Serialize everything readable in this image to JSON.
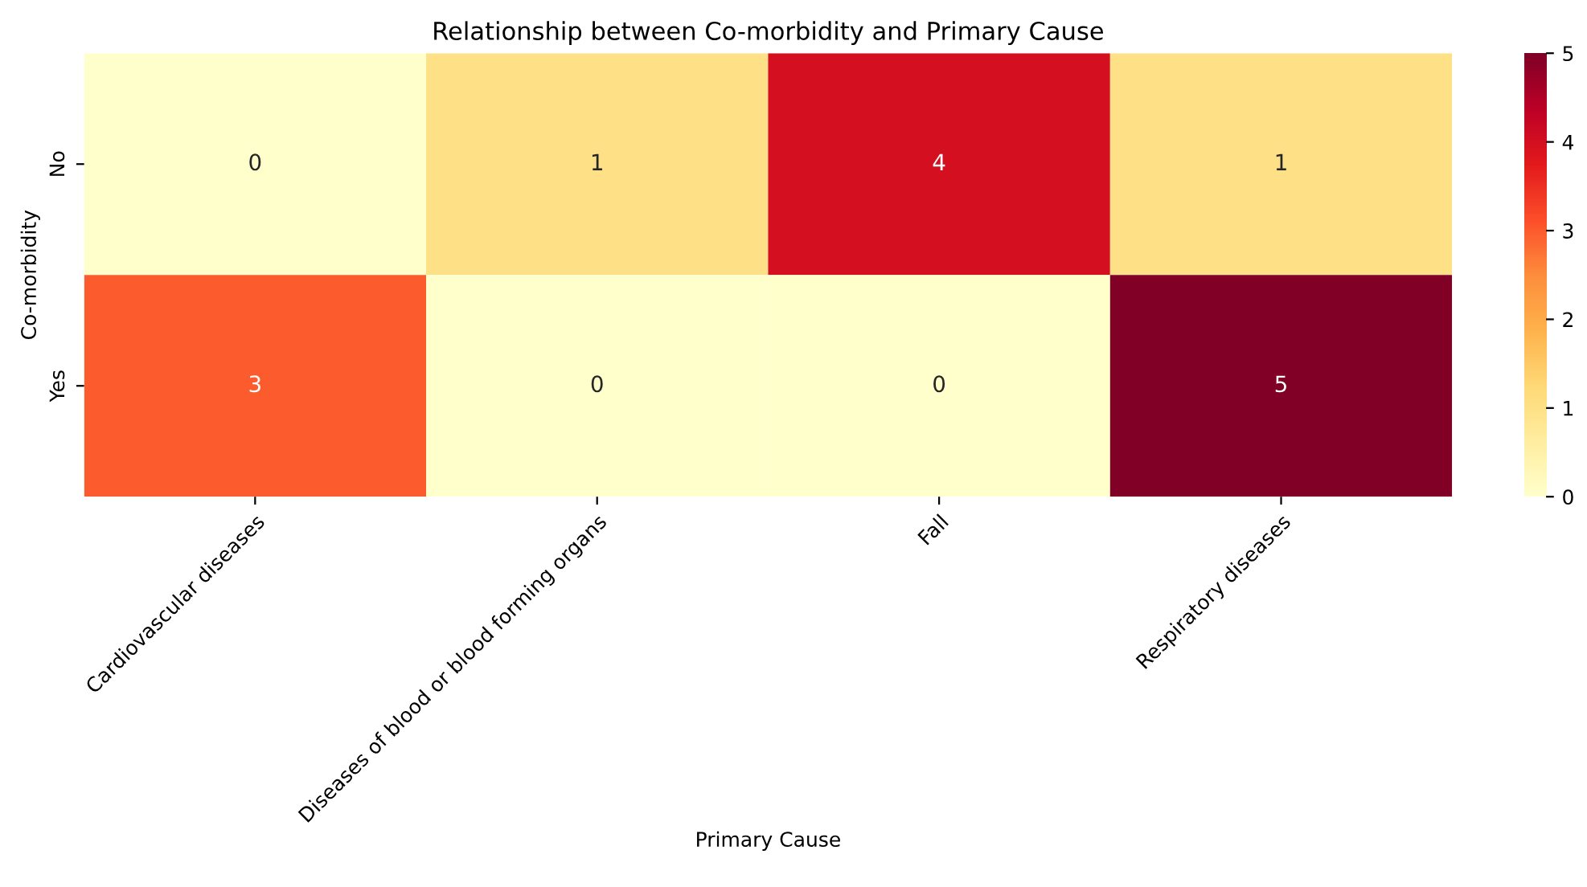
{
  "chart_data": {
    "type": "heatmap",
    "title": "Relationship between Co-morbidity and Primary Cause",
    "xlabel": "Primary Cause",
    "ylabel": "Co-morbidity",
    "categories": [
      "Cardiovascular diseases",
      "Diseases of blood or blood forming organs",
      "Fall",
      "Respiratory diseases"
    ],
    "y_categories": [
      "No",
      "Yes"
    ],
    "cells": [
      [
        0,
        1,
        4,
        1
      ],
      [
        3,
        0,
        0,
        5
      ]
    ],
    "clim": [
      0,
      5
    ],
    "cticks": [
      0,
      1,
      2,
      3,
      4,
      5
    ],
    "data_labels": true
  }
}
